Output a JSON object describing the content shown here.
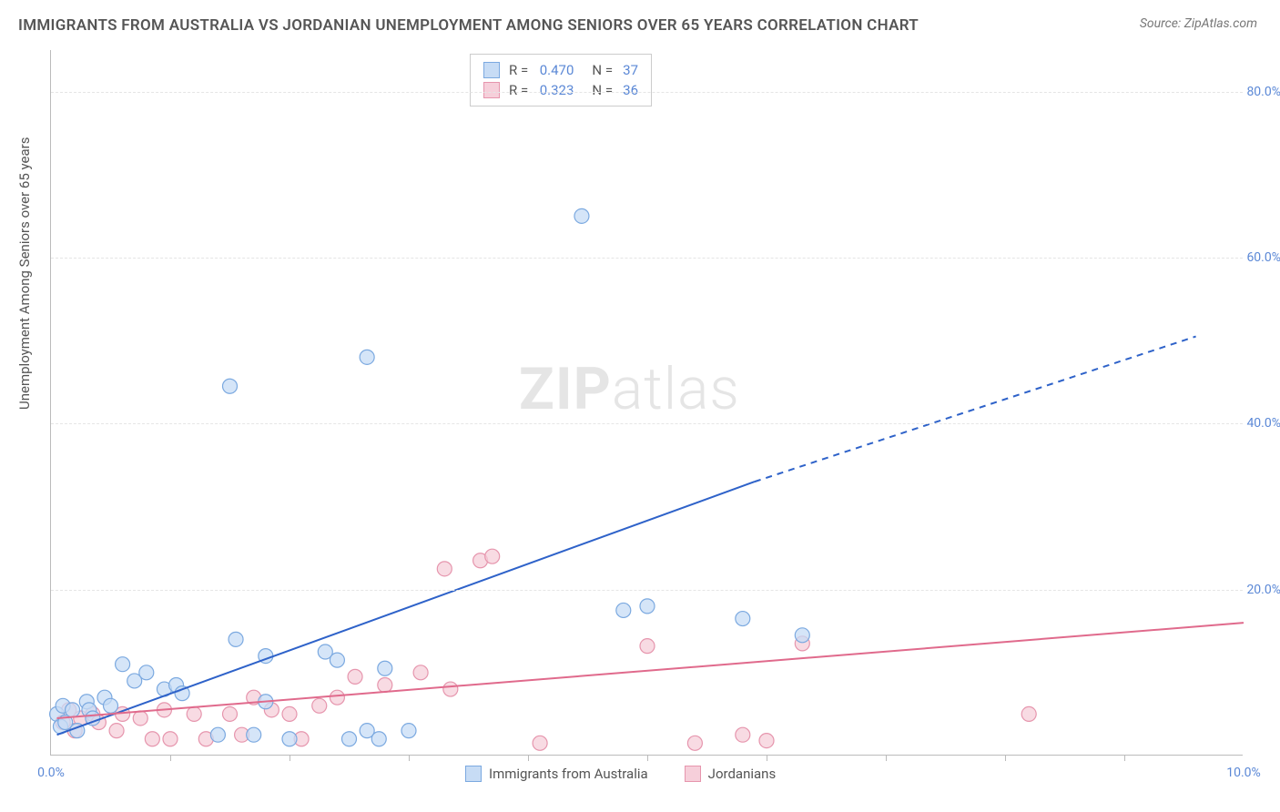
{
  "title": "IMMIGRANTS FROM AUSTRALIA VS JORDANIAN UNEMPLOYMENT AMONG SENIORS OVER 65 YEARS CORRELATION CHART",
  "source": "Source: ZipAtlas.com",
  "ylabel": "Unemployment Among Seniors over 65 years",
  "watermark_a": "ZIP",
  "watermark_b": "atlas",
  "chart": {
    "type": "scatter",
    "xlim": [
      0,
      10
    ],
    "ylim": [
      0,
      85
    ],
    "x_ticks": [
      0.0,
      10.0
    ],
    "x_tick_labels": [
      "0.0%",
      "10.0%"
    ],
    "x_minor_ticks": [
      1,
      2,
      3,
      4,
      5,
      6,
      7,
      8,
      9
    ],
    "y_ticks": [
      20,
      40,
      60,
      80
    ],
    "y_tick_labels": [
      "20.0%",
      "40.0%",
      "60.0%",
      "80.0%"
    ],
    "background_color": "#ffffff",
    "grid_color": "#e5e5e5",
    "series": [
      {
        "name": "Immigrants from Australia",
        "marker_fill": "#c7dcf5",
        "marker_stroke": "#7ba9e0",
        "marker_radius": 8,
        "line_color": "#2e62c9",
        "line_width": 2,
        "r": "0.470",
        "n": "37",
        "trend_solid": [
          [
            0.05,
            2.5
          ],
          [
            5.9,
            33.0
          ]
        ],
        "trend_dashed": [
          [
            5.9,
            33.0
          ],
          [
            9.6,
            50.5
          ]
        ],
        "points": [
          [
            0.05,
            5.0
          ],
          [
            0.08,
            3.5
          ],
          [
            0.1,
            6.0
          ],
          [
            0.12,
            4.0
          ],
          [
            0.18,
            5.5
          ],
          [
            0.22,
            3.0
          ],
          [
            0.3,
            6.5
          ],
          [
            0.32,
            5.5
          ],
          [
            0.35,
            4.5
          ],
          [
            0.45,
            7.0
          ],
          [
            0.5,
            6.0
          ],
          [
            0.6,
            11.0
          ],
          [
            0.7,
            9.0
          ],
          [
            0.8,
            10.0
          ],
          [
            0.95,
            8.0
          ],
          [
            1.05,
            8.5
          ],
          [
            1.1,
            7.5
          ],
          [
            1.4,
            2.5
          ],
          [
            1.55,
            14.0
          ],
          [
            1.7,
            2.5
          ],
          [
            1.8,
            6.5
          ],
          [
            1.8,
            12.0
          ],
          [
            2.0,
            2.0
          ],
          [
            2.3,
            12.5
          ],
          [
            2.4,
            11.5
          ],
          [
            2.5,
            2.0
          ],
          [
            2.65,
            3.0
          ],
          [
            2.75,
            2.0
          ],
          [
            2.8,
            10.5
          ],
          [
            3.0,
            3.0
          ],
          [
            1.5,
            44.5
          ],
          [
            2.65,
            48.0
          ],
          [
            4.45,
            65.0
          ],
          [
            4.8,
            17.5
          ],
          [
            5.0,
            18.0
          ],
          [
            5.8,
            16.5
          ],
          [
            6.3,
            14.5
          ]
        ]
      },
      {
        "name": "Jordanians",
        "marker_fill": "#f6cfda",
        "marker_stroke": "#e695ad",
        "marker_radius": 8,
        "line_color": "#e06a8c",
        "line_width": 2,
        "r": "0.323",
        "n": "36",
        "trend_solid": [
          [
            0.05,
            4.5
          ],
          [
            10.0,
            16.0
          ]
        ],
        "trend_dashed": null,
        "points": [
          [
            0.1,
            4.0
          ],
          [
            0.15,
            5.5
          ],
          [
            0.2,
            3.0
          ],
          [
            0.25,
            4.5
          ],
          [
            0.35,
            5.0
          ],
          [
            0.4,
            4.0
          ],
          [
            0.55,
            3.0
          ],
          [
            0.6,
            5.0
          ],
          [
            0.75,
            4.5
          ],
          [
            0.85,
            2.0
          ],
          [
            0.95,
            5.5
          ],
          [
            1.0,
            2.0
          ],
          [
            1.2,
            5.0
          ],
          [
            1.3,
            2.0
          ],
          [
            1.5,
            5.0
          ],
          [
            1.6,
            2.5
          ],
          [
            1.7,
            7.0
          ],
          [
            1.85,
            5.5
          ],
          [
            2.0,
            5.0
          ],
          [
            2.1,
            2.0
          ],
          [
            2.25,
            6.0
          ],
          [
            2.4,
            7.0
          ],
          [
            2.55,
            9.5
          ],
          [
            2.8,
            8.5
          ],
          [
            3.1,
            10.0
          ],
          [
            3.3,
            22.5
          ],
          [
            3.35,
            8.0
          ],
          [
            3.6,
            23.5
          ],
          [
            3.7,
            24.0
          ],
          [
            4.1,
            1.5
          ],
          [
            5.0,
            13.2
          ],
          [
            5.4,
            1.5
          ],
          [
            5.8,
            2.5
          ],
          [
            6.3,
            13.5
          ],
          [
            8.2,
            5.0
          ],
          [
            6.0,
            1.8
          ]
        ]
      }
    ],
    "legend_bottom": [
      {
        "label": "Immigrants from Australia",
        "fill": "#c7dcf5",
        "stroke": "#7ba9e0"
      },
      {
        "label": "Jordanians",
        "fill": "#f6cfda",
        "stroke": "#e695ad"
      }
    ]
  }
}
